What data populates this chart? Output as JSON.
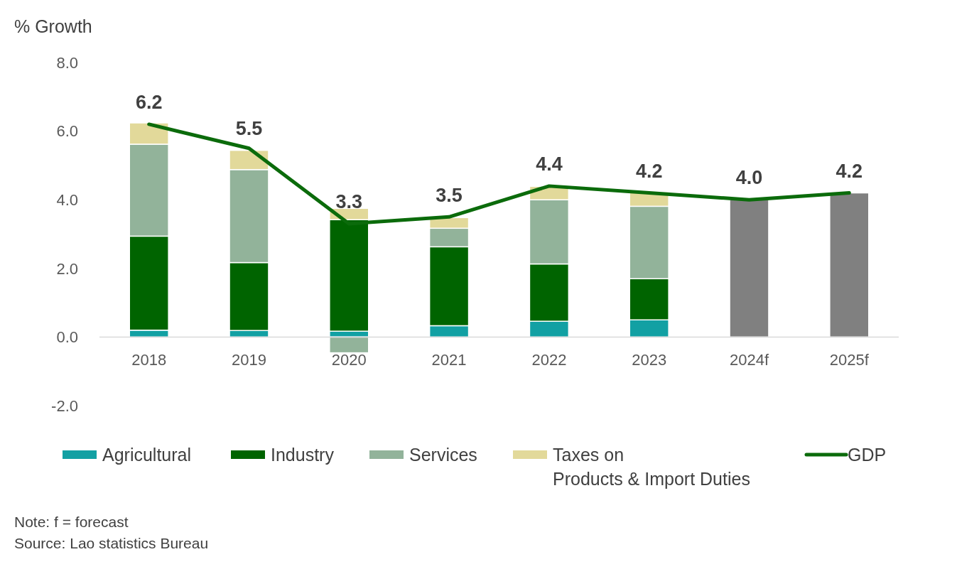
{
  "chart_data": {
    "type": "bar",
    "stacked": true,
    "ylabel": "% Growth",
    "categories": [
      "2018",
      "2019",
      "2020",
      "2021",
      "2022",
      "2023",
      "2024f",
      "2025f"
    ],
    "series": [
      {
        "name": "Agricultural",
        "color": "#12a0a3",
        "values": [
          0.2,
          0.19,
          0.17,
          0.33,
          0.46,
          0.5,
          null,
          null
        ]
      },
      {
        "name": "Industry",
        "color": "#006400",
        "values": [
          2.74,
          1.98,
          3.25,
          2.3,
          1.67,
          1.2,
          null,
          null
        ]
      },
      {
        "name": "Services",
        "color": "#92b39a",
        "values": [
          2.68,
          2.71,
          -0.46,
          0.54,
          1.87,
          2.11,
          null,
          null
        ]
      },
      {
        "name": "Taxes on Products & Import Duties",
        "color": "#e2d99a",
        "values": [
          0.62,
          0.56,
          0.33,
          0.31,
          0.39,
          0.42,
          null,
          null
        ]
      },
      {
        "color": "#808080",
        "values": [
          null,
          null,
          null,
          null,
          null,
          null,
          4.0,
          4.2
        ]
      },
      {
        "name": "GDP",
        "type": "line",
        "color": "#0b6b0b",
        "values": [
          6.2,
          5.5,
          3.3,
          3.5,
          4.4,
          4.2,
          4.0,
          4.2
        ],
        "value_labels": [
          "6.2",
          "5.5",
          "3.3",
          "3.5",
          "4.4",
          "4.2",
          "4.0",
          "4.2"
        ]
      }
    ],
    "ylim": [
      -2,
      8
    ],
    "yticks": [
      {
        "value": -2,
        "label": "-2.0"
      },
      {
        "value": 0,
        "label": "0.0"
      },
      {
        "value": 2,
        "label": "2.0"
      },
      {
        "value": 4,
        "label": "4.0"
      },
      {
        "value": 6,
        "label": "6.0"
      },
      {
        "value": 8,
        "label": "8.0"
      }
    ],
    "grid": false,
    "legend": "bottom",
    "marker": "none",
    "line_style": "solid",
    "annotations": [
      "Note: f = forecast",
      "Source: Lao statistics Bureau"
    ]
  }
}
